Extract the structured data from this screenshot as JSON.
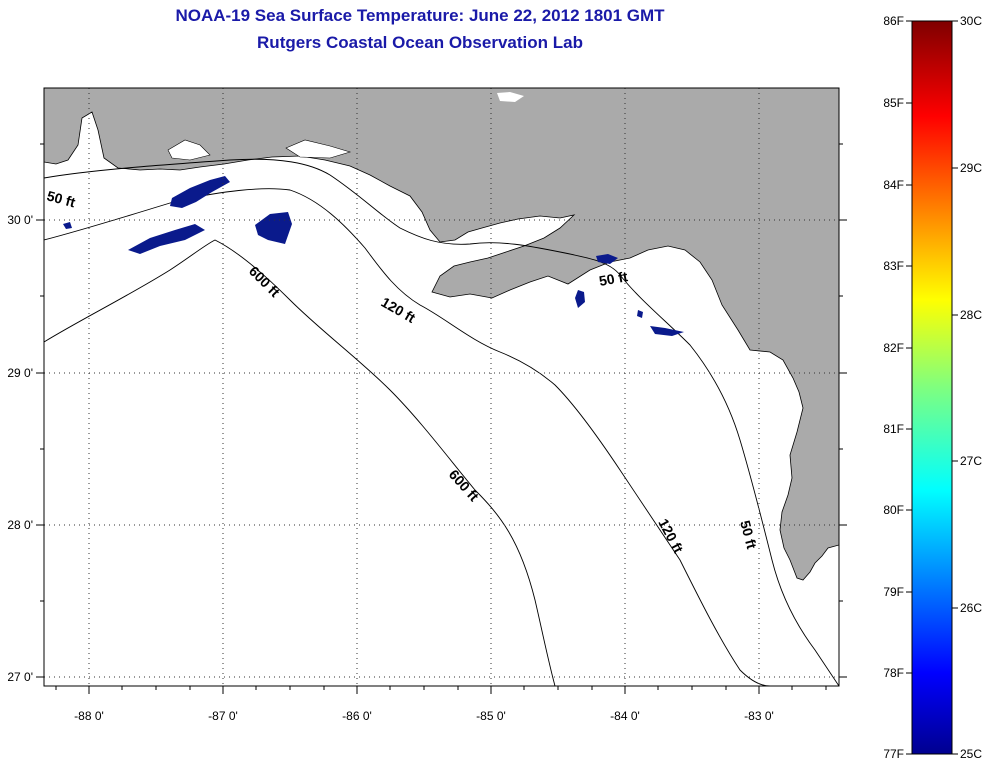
{
  "title": {
    "line1": "NOAA-19 Sea Surface Temperature:  June 22, 2012 1801 GMT",
    "line2": "Rutgers Coastal Ocean Observation Lab"
  },
  "map": {
    "lon_labels": [
      "-88 0'",
      "-87 0'",
      "-86 0'",
      "-85 0'",
      "-84 0'",
      "-83 0'"
    ],
    "lat_labels": [
      "30 0'",
      "29 0'",
      "28 0'",
      "27 0'"
    ],
    "contour_labels": [
      "50 ft",
      "600 ft",
      "120 ft",
      "50 ft",
      "600 ft",
      "120 ft",
      "50 ft"
    ]
  },
  "colorbar": {
    "f_labels": [
      "86F",
      "85F",
      "84F",
      "83F",
      "82F",
      "81F",
      "80F",
      "79F",
      "78F",
      "77F"
    ],
    "c_labels": [
      "30C",
      "29C",
      "28C",
      "27C",
      "26C",
      "25C"
    ]
  },
  "colors": {
    "title": "#1a1aa8",
    "land": "#aaaaaa",
    "sst_patch": "#0a1a8c"
  }
}
